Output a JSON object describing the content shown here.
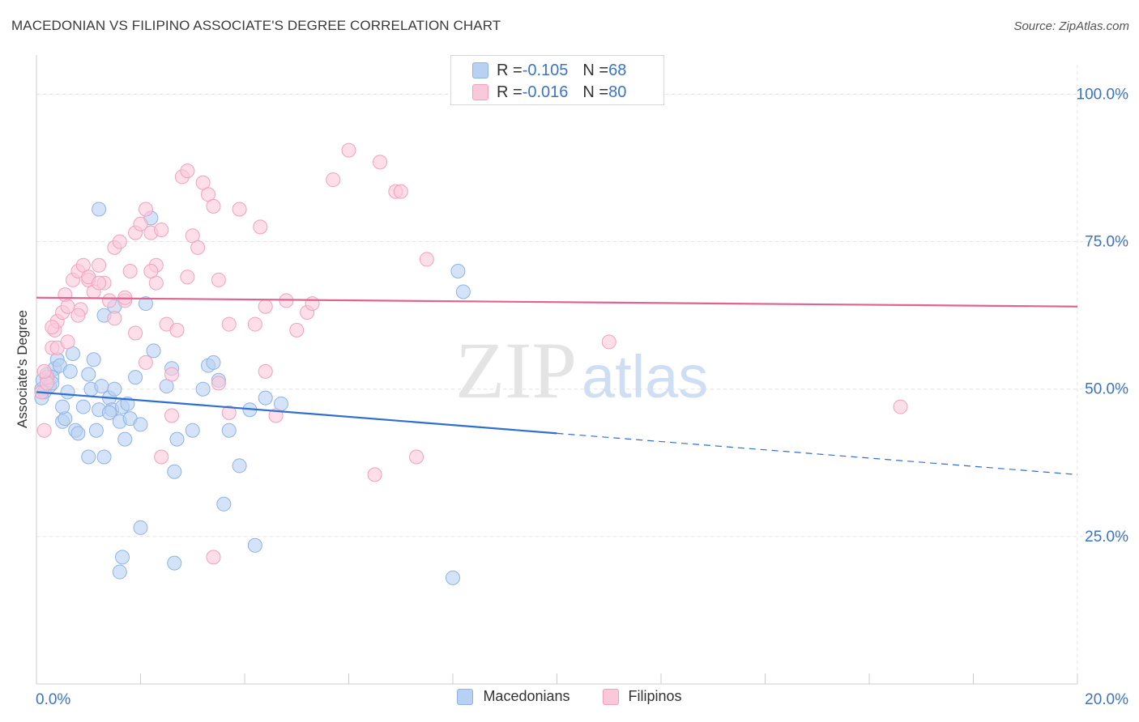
{
  "title": "MACEDONIAN VS FILIPINO ASSOCIATE'S DEGREE CORRELATION CHART",
  "source": "Source: ZipAtlas.com",
  "watermark": {
    "zip": "ZIP",
    "atlas": "atlas"
  },
  "legend_top": {
    "mac_r_label": "R = ",
    "mac_r": "-0.105",
    "mac_n_label": "N = ",
    "mac_n": "68",
    "fil_r_label": "R = ",
    "fil_r": "-0.016",
    "fil_n_label": "N = ",
    "fil_n": "80"
  },
  "legend_bottom": {
    "mac": "Macedonians",
    "fil": "Filipinos"
  },
  "colors": {
    "mac_fill": "#b8d1f3",
    "mac_stroke": "#8fb3e6",
    "mac_line": "#2e6fd0",
    "fil_fill": "#fbc8da",
    "fil_stroke": "#f2a1bd",
    "fil_line": "#e0648f",
    "axis_text": "#3b74c4"
  },
  "chart_data": {
    "type": "scatter",
    "title": "MACEDONIAN VS FILIPINO ASSOCIATE'S DEGREE CORRELATION CHART",
    "xlabel": "",
    "ylabel": "Associate's Degree",
    "xlim": [
      0,
      20
    ],
    "ylim": [
      0,
      105
    ],
    "x_tick_labels": [
      "0.0%",
      "20.0%"
    ],
    "y_ticks": [
      25,
      50,
      75,
      100
    ],
    "y_tick_labels": [
      "25.0%",
      "50.0%",
      "75.0%",
      "100.0%"
    ],
    "grid": true,
    "series": [
      {
        "name": "Macedonians",
        "r": -0.105,
        "n": 68,
        "trend": {
          "x0": 0,
          "y0": 49.5,
          "x1": 10,
          "y1": 42.5,
          "dash_to_x": 20,
          "dash_to_y": 35.5
        },
        "points": [
          [
            0.1,
            50.0
          ],
          [
            0.15,
            49.5
          ],
          [
            0.1,
            48.5
          ],
          [
            0.12,
            51.5
          ],
          [
            0.2,
            52.5
          ],
          [
            0.25,
            50.5
          ],
          [
            0.35,
            53.5
          ],
          [
            0.3,
            52.0
          ],
          [
            0.4,
            55.0
          ],
          [
            0.45,
            54.0
          ],
          [
            0.5,
            44.5
          ],
          [
            0.55,
            45.0
          ],
          [
            0.6,
            49.5
          ],
          [
            0.65,
            53.0
          ],
          [
            0.7,
            56.0
          ],
          [
            0.75,
            43.0
          ],
          [
            0.8,
            42.5
          ],
          [
            0.9,
            47.0
          ],
          [
            1.0,
            52.5
          ],
          [
            1.05,
            50.0
          ],
          [
            1.1,
            55.0
          ],
          [
            1.15,
            43.0
          ],
          [
            1.2,
            46.5
          ],
          [
            1.25,
            50.5
          ],
          [
            1.3,
            62.5
          ],
          [
            1.4,
            48.5
          ],
          [
            1.5,
            50.0
          ],
          [
            1.45,
            46.5
          ],
          [
            1.6,
            44.5
          ],
          [
            1.65,
            47.0
          ],
          [
            1.7,
            41.5
          ],
          [
            1.75,
            47.5
          ],
          [
            1.8,
            45.0
          ],
          [
            1.9,
            52.0
          ],
          [
            2.0,
            44.0
          ],
          [
            2.1,
            64.5
          ],
          [
            2.2,
            79.0
          ],
          [
            2.25,
            56.5
          ],
          [
            2.6,
            53.5
          ],
          [
            2.7,
            41.5
          ],
          [
            2.65,
            36.0
          ],
          [
            3.0,
            43.0
          ],
          [
            3.2,
            50.0
          ],
          [
            3.3,
            54.0
          ],
          [
            3.4,
            54.5
          ],
          [
            3.5,
            51.5
          ],
          [
            3.7,
            43.0
          ],
          [
            3.9,
            37.0
          ],
          [
            4.1,
            46.5
          ],
          [
            4.4,
            48.5
          ],
          [
            4.7,
            47.5
          ],
          [
            1.2,
            80.5
          ],
          [
            1.0,
            38.5
          ],
          [
            1.3,
            38.5
          ],
          [
            2.0,
            26.5
          ],
          [
            1.65,
            21.5
          ],
          [
            1.6,
            19.0
          ],
          [
            2.65,
            20.5
          ],
          [
            3.6,
            30.5
          ],
          [
            4.2,
            23.5
          ],
          [
            8.1,
            70.0
          ],
          [
            8.2,
            66.5
          ],
          [
            8.0,
            18.0
          ],
          [
            1.5,
            64.0
          ],
          [
            0.3,
            51.0
          ],
          [
            0.5,
            47.0
          ],
          [
            1.4,
            46.0
          ],
          [
            2.5,
            50.5
          ]
        ]
      },
      {
        "name": "Filipinos",
        "r": -0.016,
        "n": 80,
        "trend": {
          "x0": 0,
          "y0": 65.5,
          "x1": 20,
          "y1": 64.0
        },
        "points": [
          [
            0.1,
            49.5
          ],
          [
            0.15,
            43.0
          ],
          [
            0.2,
            52.0
          ],
          [
            0.3,
            57.0
          ],
          [
            0.35,
            60.0
          ],
          [
            0.4,
            61.5
          ],
          [
            0.5,
            63.0
          ],
          [
            0.55,
            66.0
          ],
          [
            0.6,
            64.0
          ],
          [
            0.7,
            68.5
          ],
          [
            0.8,
            70.0
          ],
          [
            0.85,
            63.5
          ],
          [
            0.9,
            71.0
          ],
          [
            1.0,
            68.5
          ],
          [
            1.1,
            66.5
          ],
          [
            1.2,
            71.0
          ],
          [
            1.3,
            68.0
          ],
          [
            1.4,
            65.0
          ],
          [
            1.5,
            74.0
          ],
          [
            1.6,
            75.0
          ],
          [
            1.7,
            65.0
          ],
          [
            1.8,
            70.0
          ],
          [
            1.9,
            76.5
          ],
          [
            2.0,
            78.0
          ],
          [
            2.1,
            80.5
          ],
          [
            2.2,
            76.5
          ],
          [
            2.3,
            68.0
          ],
          [
            2.4,
            77.0
          ],
          [
            2.5,
            61.0
          ],
          [
            2.6,
            52.5
          ],
          [
            2.7,
            60.0
          ],
          [
            2.8,
            86.0
          ],
          [
            2.9,
            87.0
          ],
          [
            3.0,
            76.0
          ],
          [
            3.1,
            74.0
          ],
          [
            3.2,
            85.0
          ],
          [
            3.3,
            83.0
          ],
          [
            3.4,
            81.0
          ],
          [
            3.5,
            68.5
          ],
          [
            3.7,
            61.0
          ],
          [
            3.9,
            80.5
          ],
          [
            4.2,
            61.0
          ],
          [
            4.3,
            77.5
          ],
          [
            4.4,
            64.0
          ],
          [
            4.8,
            65.0
          ],
          [
            5.0,
            60.0
          ],
          [
            5.2,
            63.0
          ],
          [
            5.3,
            64.5
          ],
          [
            5.7,
            85.5
          ],
          [
            6.0,
            90.5
          ],
          [
            6.6,
            88.5
          ],
          [
            6.9,
            83.5
          ],
          [
            7.0,
            83.5
          ],
          [
            7.5,
            72.0
          ],
          [
            11.0,
            58.0
          ],
          [
            16.6,
            47.0
          ],
          [
            1.7,
            65.5
          ],
          [
            2.3,
            71.0
          ],
          [
            2.9,
            69.0
          ],
          [
            3.5,
            51.0
          ],
          [
            3.7,
            46.0
          ],
          [
            4.4,
            53.0
          ],
          [
            4.6,
            45.5
          ],
          [
            2.4,
            38.5
          ],
          [
            2.6,
            45.5
          ],
          [
            6.5,
            35.5
          ],
          [
            7.3,
            38.5
          ],
          [
            3.4,
            21.5
          ],
          [
            0.4,
            57.0
          ],
          [
            0.3,
            60.5
          ],
          [
            0.8,
            62.5
          ],
          [
            1.0,
            69.0
          ],
          [
            1.5,
            62.0
          ],
          [
            1.2,
            68.0
          ],
          [
            2.1,
            54.5
          ],
          [
            1.9,
            59.5
          ],
          [
            0.2,
            51.0
          ],
          [
            0.15,
            53.0
          ],
          [
            0.6,
            58.0
          ],
          [
            2.2,
            70.0
          ]
        ]
      }
    ]
  }
}
